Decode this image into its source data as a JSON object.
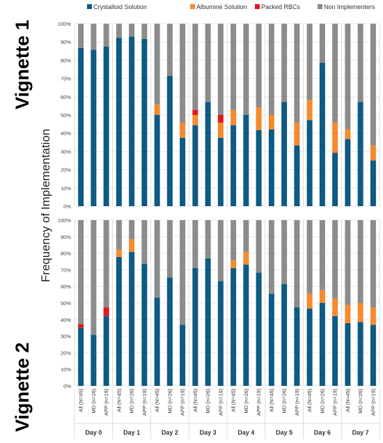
{
  "chart_data": {
    "type": "bar",
    "stacked": true,
    "percent_stacked": true,
    "ylabel": "Frequency of Implementation",
    "ylim": [
      0,
      100
    ],
    "yticks": [
      "0%",
      "10%",
      "20%",
      "30%",
      "40%",
      "50%",
      "60%",
      "70%",
      "80%",
      "90%",
      "100%"
    ],
    "legend_position": "top",
    "legend": [
      {
        "name": "Crystalloid Solution",
        "color": "#0e5a82"
      },
      {
        "name": "Albumine Solution",
        "color": "#f58a2e"
      },
      {
        "name": "Packed RBCs",
        "color": "#e0191e"
      },
      {
        "name": "Non Implementers",
        "color": "#8c8c8c"
      }
    ],
    "groups": [
      "Day 0",
      "Day 1",
      "Day 2",
      "Day 3",
      "Day 4",
      "Day 5",
      "Day 6",
      "Day 7"
    ],
    "bar_labels": [
      "All (N=45)",
      "MD (n=26)",
      "APP (n=19)"
    ],
    "grid": true,
    "panels": [
      {
        "label": "Vignette 1",
        "crystalloid": [
          86.7,
          85.7,
          87.5,
          92.3,
          92.9,
          91.7,
          50.0,
          71.4,
          37.5,
          44.4,
          57.1,
          37.5,
          44.4,
          50.0,
          41.7,
          42.1,
          57.1,
          33.3,
          47.2,
          78.6,
          29.2,
          36.8,
          57.1,
          25.0
        ],
        "albumine": [
          0,
          0,
          0,
          0,
          0,
          0,
          5.6,
          0,
          8.3,
          5.6,
          0,
          8.3,
          8.3,
          0,
          12.5,
          7.9,
          0,
          12.5,
          11.1,
          0,
          16.7,
          5.3,
          0,
          8.3
        ],
        "rbc": [
          0,
          0,
          0,
          0,
          0,
          0,
          0,
          0,
          0,
          2.8,
          0,
          4.2,
          0,
          0,
          0,
          0,
          0,
          0,
          0,
          0,
          0,
          0,
          0,
          0
        ]
      },
      {
        "label": "Vignette 2",
        "crystalloid": [
          35.0,
          30.8,
          42.1,
          77.8,
          80.8,
          73.7,
          53.3,
          65.4,
          36.8,
          71.1,
          76.9,
          63.2,
          71.1,
          73.1,
          68.4,
          55.6,
          61.5,
          47.4,
          46.7,
          50.0,
          42.1,
          37.8,
          38.5,
          36.8
        ],
        "albumine": [
          0,
          0,
          0,
          4.4,
          7.7,
          0,
          0,
          0,
          0,
          0,
          0,
          0,
          4.4,
          7.7,
          0,
          0,
          0,
          0,
          8.9,
          7.7,
          10.5,
          11.1,
          11.5,
          10.5
        ],
        "rbc": [
          2.2,
          0,
          5.3,
          0,
          0,
          0,
          0,
          0,
          0,
          0,
          0,
          0,
          0,
          0,
          0,
          0,
          0,
          0,
          0,
          0,
          0,
          0,
          0,
          0
        ]
      }
    ]
  }
}
